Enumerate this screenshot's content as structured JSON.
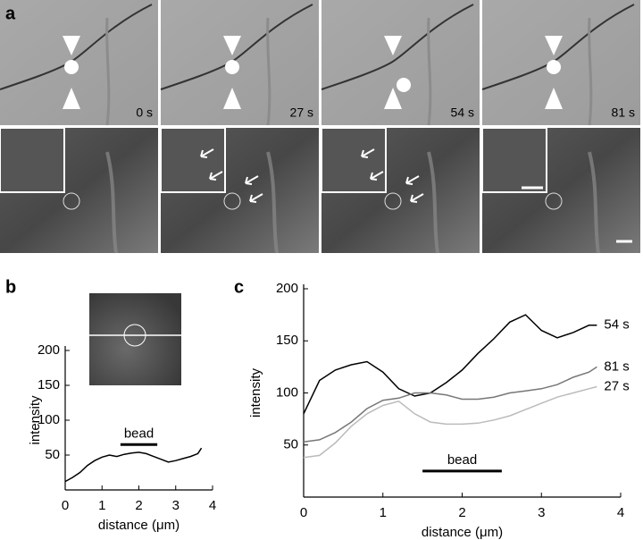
{
  "panel_labels": [
    "a",
    "b",
    "c"
  ],
  "frames": [
    "0 s",
    "27 s",
    "54 s",
    "81 s"
  ],
  "chart_data": [
    {
      "type": "line",
      "xlabel": "distance (μm)",
      "ylabel": "intensity",
      "x": [
        0,
        0.2,
        0.4,
        0.6,
        0.8,
        1.0,
        1.2,
        1.4,
        1.6,
        1.8,
        2.0,
        2.2,
        2.4,
        2.6,
        2.8,
        3.0,
        3.2,
        3.4,
        3.6,
        3.7
      ],
      "series": [
        {
          "color": "#000000",
          "values": [
            12,
            18,
            25,
            35,
            42,
            47,
            50,
            48,
            51,
            53,
            54,
            52,
            48,
            44,
            40,
            42,
            45,
            48,
            52,
            60
          ]
        }
      ],
      "xlim": [
        0,
        4
      ],
      "xticks": [
        0,
        1,
        2,
        3,
        4
      ],
      "ylim": [
        0,
        200
      ],
      "yticks": [
        50,
        100,
        150,
        200
      ],
      "annotation": {
        "text": "bead",
        "x": [
          1.5,
          2.5
        ],
        "y": 65
      }
    },
    {
      "type": "line",
      "xlabel": "distance (μm)",
      "ylabel": "intensity",
      "x": [
        0,
        0.2,
        0.4,
        0.6,
        0.8,
        1.0,
        1.2,
        1.4,
        1.6,
        1.8,
        2.0,
        2.2,
        2.4,
        2.6,
        2.8,
        3.0,
        3.2,
        3.4,
        3.6,
        3.7
      ],
      "series": [
        {
          "name": "54 s",
          "color": "#000000",
          "values": [
            80,
            112,
            122,
            127,
            130,
            120,
            104,
            97,
            100,
            110,
            122,
            138,
            152,
            168,
            175,
            160,
            153,
            158,
            165,
            165
          ]
        },
        {
          "name": "81 s",
          "color": "#777777",
          "values": [
            53,
            55,
            62,
            72,
            85,
            93,
            95,
            100,
            100,
            98,
            94,
            94,
            96,
            100,
            102,
            104,
            108,
            115,
            120,
            125
          ]
        },
        {
          "name": "27 s",
          "color": "#bbbbbb",
          "values": [
            38,
            40,
            52,
            68,
            80,
            88,
            92,
            80,
            72,
            70,
            70,
            71,
            74,
            78,
            84,
            90,
            96,
            100,
            104,
            106
          ]
        }
      ],
      "xlim": [
        0,
        4
      ],
      "xticks": [
        0,
        1,
        2,
        3,
        4
      ],
      "ylim": [
        0,
        200
      ],
      "yticks": [
        50,
        100,
        150,
        200
      ],
      "annotation": {
        "text": "bead",
        "x": [
          1.5,
          2.5
        ],
        "y": 25
      }
    }
  ]
}
